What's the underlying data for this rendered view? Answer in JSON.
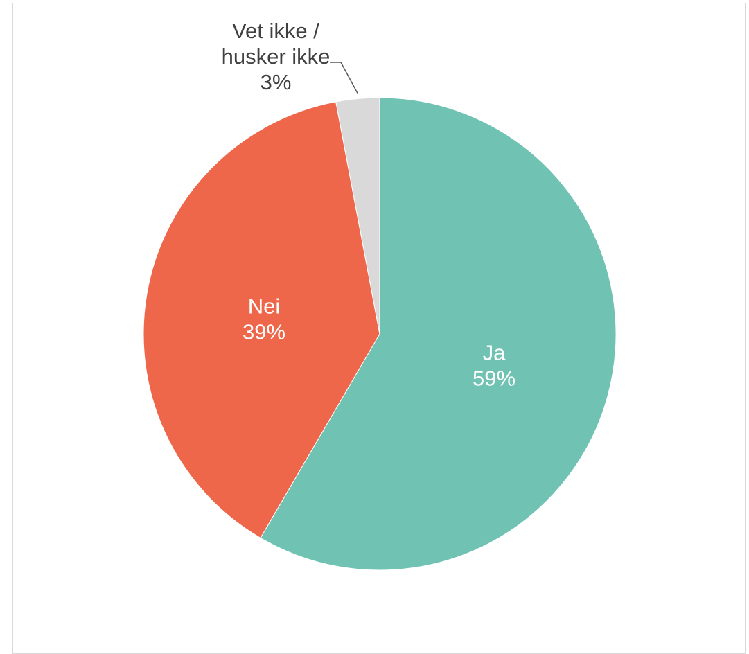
{
  "chart_data": {
    "type": "pie",
    "title": "",
    "slices": [
      {
        "label": "Ja",
        "value": 59,
        "value_label": "59%",
        "color": "#70c2b3",
        "label_color": "#ffffff"
      },
      {
        "label": "Nei",
        "value": 39,
        "value_label": "39%",
        "color": "#ef674b",
        "label_color": "#ffffff"
      },
      {
        "label": "Vet ikke / husker ikke",
        "label_lines": [
          "Vet ikke /",
          "husker ikke"
        ],
        "value": 3,
        "value_label": "3%",
        "color": "#d9d9d9",
        "label_color": "#404040"
      }
    ],
    "start_angle": "12 o'clock",
    "direction": "clockwise",
    "legend": "none"
  }
}
